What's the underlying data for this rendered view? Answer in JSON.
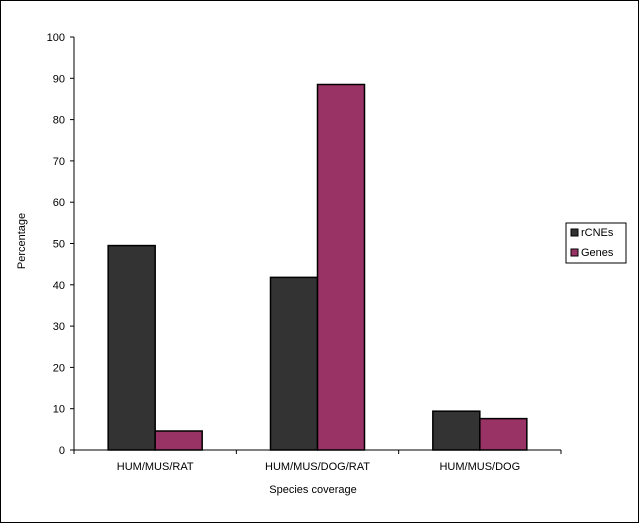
{
  "chart_data": {
    "type": "bar",
    "categories": [
      "HUM/MUS/RAT",
      "HUM/MUS/DOG/RAT",
      "HUM/MUS/DOG"
    ],
    "series": [
      {
        "name": "rCNEs",
        "values": [
          49.5,
          41.8,
          9.4
        ]
      },
      {
        "name": "Genes",
        "values": [
          4.6,
          88.5,
          7.6
        ]
      }
    ],
    "xlabel": "Species coverage",
    "ylabel": "Percentage",
    "ylim": [
      0,
      100
    ],
    "yticks": [
      0,
      10,
      20,
      30,
      40,
      50,
      60,
      70,
      80,
      90,
      100
    ],
    "grid": false,
    "legend_position": "right",
    "colors": {
      "rCNEs": "#333333",
      "Genes": "#993366"
    }
  }
}
